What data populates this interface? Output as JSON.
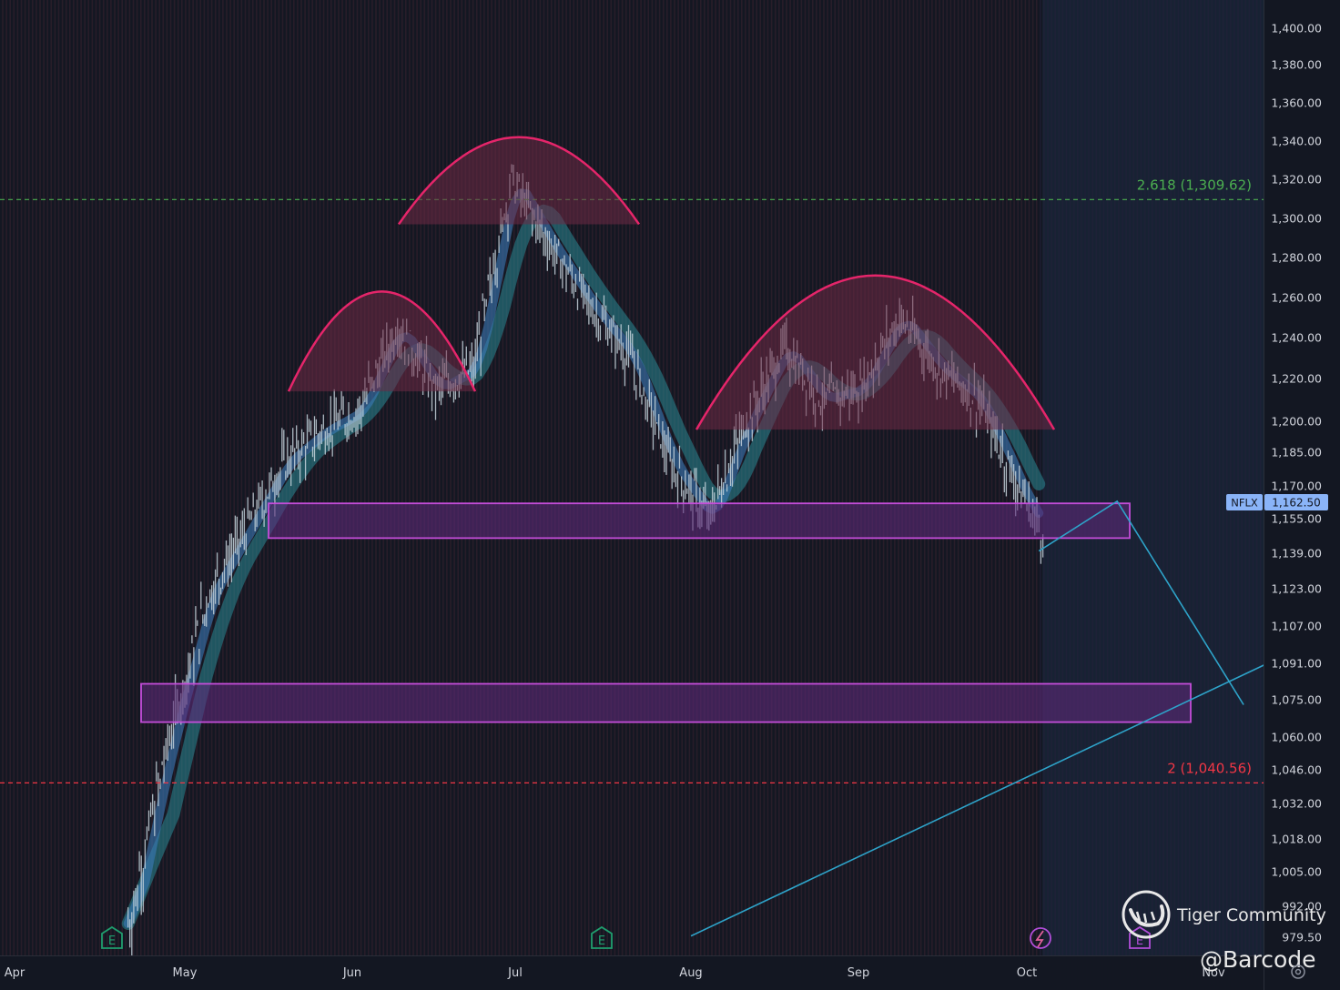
{
  "chart_data": {
    "type": "candlestick",
    "symbol": "NFLX",
    "last_price": "1,162.50",
    "y_ticks": [
      "1,400.00",
      "1,380.00",
      "1,360.00",
      "1,340.00",
      "1,320.00",
      "1,300.00",
      "1,280.00",
      "1,260.00",
      "1,240.00",
      "1,220.00",
      "1,200.00",
      "1,185.00",
      "1,170.00",
      "1,155.00",
      "1,139.00",
      "1,123.00",
      "1,107.00",
      "1,091.00",
      "1,075.00",
      "1,060.00",
      "1,046.00",
      "1,032.00",
      "1,018.00",
      "1,005.00",
      "992.00",
      "979.50"
    ],
    "x_ticks": [
      "Apr",
      "May",
      "Jun",
      "Jul",
      "Aug",
      "Sep",
      "Oct",
      "Nov"
    ],
    "price_series_approx": {
      "x": [
        "Apr 21",
        "Apr 28",
        "May 5",
        "May 12",
        "May 19",
        "May 26",
        "Jun 2",
        "Jun 9",
        "Jun 16",
        "Jun 23",
        "Jun 30",
        "Jul 7",
        "Jul 14",
        "Jul 21",
        "Jul 28",
        "Aug 4",
        "Aug 11",
        "Aug 18",
        "Aug 25",
        "Sep 1",
        "Sep 8",
        "Sep 15",
        "Sep 22",
        "Sep 29",
        "Oct 3"
      ],
      "close": [
        985,
        1060,
        1120,
        1150,
        1180,
        1195,
        1205,
        1245,
        1215,
        1225,
        1320,
        1285,
        1255,
        1230,
        1180,
        1155,
        1200,
        1235,
        1210,
        1215,
        1250,
        1225,
        1210,
        1170,
        1150
      ]
    },
    "levels": [
      {
        "label": "2.618 (1,309.62)",
        "value": 1309.62,
        "color": "#4caf50"
      },
      {
        "label": "2 (1,040.56)",
        "value": 1040.56,
        "color": "#f23645"
      }
    ],
    "zones": [
      {
        "name": "upper-support-zone",
        "top": 1162,
        "bottom": 1146
      },
      {
        "name": "lower-support-zone",
        "top": 1082,
        "bottom": 1066
      }
    ],
    "domes": [
      {
        "name": "left-shoulder",
        "base": 1214,
        "peak": 1263
      },
      {
        "name": "head",
        "base": 1297,
        "peak": 1342
      },
      {
        "name": "right-shoulder",
        "base": 1196,
        "peak": 1271
      }
    ],
    "projection": [
      {
        "date": "Oct 3",
        "price": 1140
      },
      {
        "date": "Oct 16",
        "price": 1163
      },
      {
        "date": "Nov 6",
        "price": 1073
      }
    ],
    "trendline": [
      {
        "date": "Aug 1",
        "price": 980
      },
      {
        "date": "Nov 10",
        "price": 1091
      }
    ]
  },
  "watermark": {
    "brand": "Tiger Community",
    "handle": "@Barcode"
  },
  "colors": {
    "background": "#131722",
    "recent_background": "#172233",
    "dome_stroke": "#e5256a",
    "dome_fill": "#6e2a45",
    "zone_stroke": "#c44dd9",
    "zone_fill": "#5c2a78",
    "projection": "#2ea3c9",
    "candles": "#c6d3dc",
    "ma_fast": "#3b7ab8",
    "ma_slow": "#2a8a96",
    "tag": "#8ab4f8"
  }
}
